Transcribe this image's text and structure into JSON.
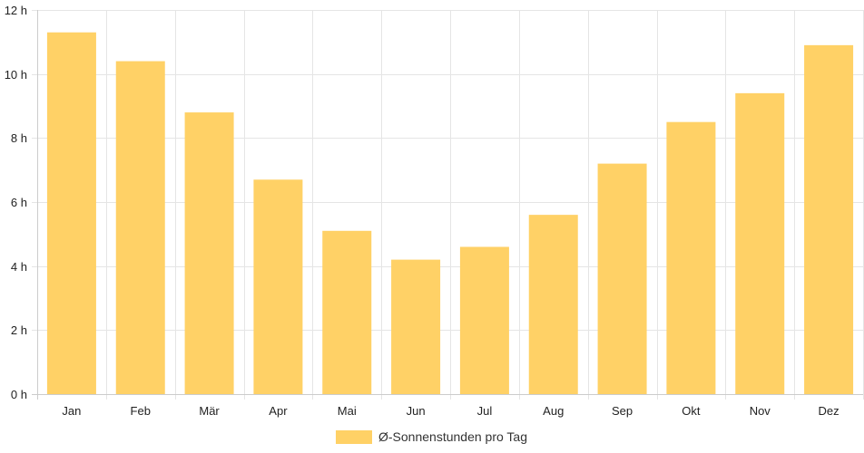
{
  "chart_data": {
    "type": "bar",
    "categories": [
      "Jan",
      "Feb",
      "Mär",
      "Apr",
      "Mai",
      "Jun",
      "Jul",
      "Aug",
      "Sep",
      "Okt",
      "Nov",
      "Dez"
    ],
    "series": [
      {
        "name": "Ø-Sonnenstunden pro Tag",
        "values": [
          11.3,
          10.4,
          8.8,
          6.7,
          5.1,
          4.2,
          4.6,
          5.6,
          7.2,
          8.5,
          9.4,
          10.9
        ],
        "color": "#ffd166"
      }
    ],
    "y_ticks": [
      "0 h",
      "2 h",
      "4 h",
      "6 h",
      "8 h",
      "10 h",
      "12 h"
    ],
    "ylim": [
      0,
      12
    ],
    "y_tick_step": 2,
    "grid": true,
    "legend_position": "bottom-center",
    "grid_color": "#e5e5e5",
    "axis_color": "#cccccc"
  }
}
